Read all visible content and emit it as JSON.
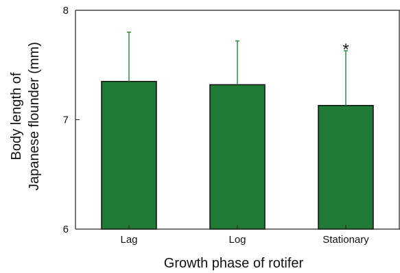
{
  "chart_data": {
    "type": "bar",
    "categories": [
      "Lag",
      "Log",
      "Stationary"
    ],
    "values": [
      7.35,
      7.32,
      7.13
    ],
    "error_upper": [
      7.8,
      7.72,
      7.63
    ],
    "ylim": [
      6,
      8
    ],
    "yticks": [
      6,
      7,
      8
    ],
    "xlabel": "Growth phase of rotifer",
    "ylabel_lines": [
      "Body length of",
      "Japanese flounder (mm)"
    ],
    "annotations": [
      {
        "category": "Stationary",
        "text": "*"
      }
    ],
    "grid": false,
    "colors": {
      "bar_fill": "#1e7a35",
      "bar_stroke": "#111111",
      "error_bar": "#2e8b40",
      "axis": "#222222"
    }
  }
}
